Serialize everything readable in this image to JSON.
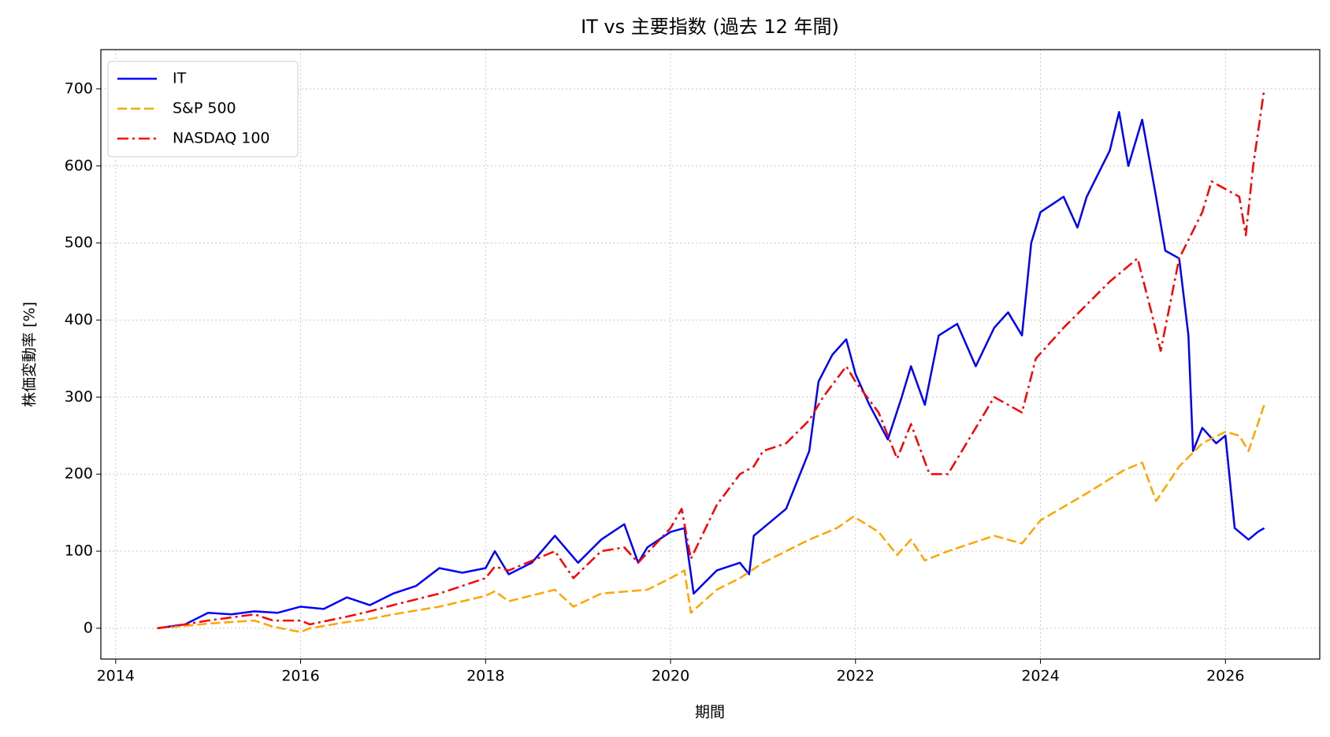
{
  "chart_data": {
    "type": "line",
    "title": "IT vs 主要指数 (過去 12 年間)",
    "xlabel": "期間",
    "ylabel": "株価変動率 [%]",
    "xlim": [
      2013.84,
      2027.02
    ],
    "xticks": [
      2014,
      2016,
      2018,
      2020,
      2022,
      2024,
      2026
    ],
    "ylim": [
      -40,
      751
    ],
    "yticks": [
      0,
      100,
      200,
      300,
      400,
      500,
      600,
      700
    ],
    "grid": true,
    "legend": "upper-left",
    "series": [
      {
        "name": "IT",
        "color": "#0000ff",
        "linestyle": "solid",
        "x": [
          2014.45,
          2014.75,
          2015.0,
          2015.25,
          2015.5,
          2015.75,
          2016.0,
          2016.25,
          2016.5,
          2016.75,
          2017.0,
          2017.25,
          2017.5,
          2017.75,
          2018.0,
          2018.1,
          2018.25,
          2018.5,
          2018.75,
          2019.0,
          2019.25,
          2019.5,
          2019.65,
          2019.75,
          2020.0,
          2020.15,
          2020.25,
          2020.5,
          2020.75,
          2020.85,
          2020.9,
          2021.0,
          2021.25,
          2021.4,
          2021.5,
          2021.6,
          2021.75,
          2021.9,
          2022.0,
          2022.15,
          2022.35,
          2022.5,
          2022.6,
          2022.75,
          2022.9,
          2023.1,
          2023.3,
          2023.5,
          2023.65,
          2023.8,
          2023.9,
          2024.0,
          2024.25,
          2024.4,
          2024.5,
          2024.75,
          2024.85,
          2024.95,
          2025.1,
          2025.25,
          2025.35,
          2025.5,
          2025.6,
          2025.65,
          2025.75,
          2025.9,
          2026.0,
          2026.1,
          2026.25,
          2026.35,
          2026.42
        ],
        "values": [
          0,
          5,
          20,
          18,
          22,
          20,
          28,
          25,
          40,
          30,
          45,
          55,
          78,
          72,
          78,
          100,
          70,
          85,
          120,
          85,
          115,
          135,
          85,
          105,
          125,
          130,
          45,
          75,
          85,
          70,
          120,
          130,
          155,
          200,
          230,
          320,
          355,
          375,
          330,
          290,
          245,
          300,
          340,
          290,
          380,
          395,
          340,
          390,
          410,
          380,
          500,
          540,
          560,
          520,
          560,
          620,
          670,
          600,
          660,
          560,
          490,
          480,
          380,
          230,
          260,
          240,
          250,
          130,
          115,
          125,
          130
        ]
      },
      {
        "name": "S&P 500",
        "color": "#ffa500",
        "linestyle": "dashed",
        "x": [
          2014.45,
          2014.75,
          2015.0,
          2015.5,
          2015.7,
          2016.0,
          2016.1,
          2016.5,
          2016.75,
          2017.0,
          2017.5,
          2018.0,
          2018.1,
          2018.25,
          2018.75,
          2018.95,
          2019.25,
          2019.75,
          2020.0,
          2020.15,
          2020.22,
          2020.5,
          2020.75,
          2021.0,
          2021.5,
          2021.8,
          2021.98,
          2022.25,
          2022.45,
          2022.6,
          2022.75,
          2023.0,
          2023.5,
          2023.8,
          2024.0,
          2024.5,
          2024.9,
          2025.1,
          2025.25,
          2025.5,
          2025.75,
          2026.0,
          2026.15,
          2026.25,
          2026.42
        ],
        "values": [
          0,
          3,
          6,
          10,
          2,
          -5,
          0,
          8,
          12,
          18,
          28,
          42,
          48,
          35,
          50,
          28,
          45,
          50,
          65,
          75,
          20,
          50,
          65,
          85,
          115,
          130,
          145,
          125,
          95,
          115,
          88,
          100,
          120,
          110,
          140,
          175,
          205,
          215,
          165,
          210,
          240,
          255,
          250,
          230,
          290
        ]
      },
      {
        "name": "NASDAQ 100",
        "color": "#ff0000",
        "linestyle": "dashdot",
        "x": [
          2014.45,
          2014.75,
          2015.0,
          2015.5,
          2015.7,
          2016.0,
          2016.1,
          2016.5,
          2016.75,
          2017.0,
          2017.5,
          2018.0,
          2018.1,
          2018.25,
          2018.75,
          2018.95,
          2019.25,
          2019.5,
          2019.65,
          2020.0,
          2020.12,
          2020.22,
          2020.5,
          2020.75,
          2020.9,
          2021.0,
          2021.25,
          2021.5,
          2021.65,
          2021.9,
          2022.0,
          2022.25,
          2022.45,
          2022.6,
          2022.8,
          2023.0,
          2023.25,
          2023.5,
          2023.8,
          2023.95,
          2024.25,
          2024.5,
          2024.75,
          2025.05,
          2025.2,
          2025.3,
          2025.5,
          2025.75,
          2025.85,
          2026.0,
          2026.15,
          2026.22,
          2026.3,
          2026.42
        ],
        "values": [
          0,
          5,
          10,
          18,
          10,
          10,
          5,
          15,
          22,
          30,
          45,
          65,
          80,
          75,
          100,
          65,
          100,
          105,
          85,
          130,
          155,
          90,
          160,
          200,
          210,
          230,
          240,
          270,
          300,
          340,
          320,
          280,
          220,
          265,
          200,
          200,
          250,
          300,
          280,
          350,
          390,
          420,
          450,
          480,
          410,
          360,
          480,
          540,
          580,
          570,
          560,
          510,
          600,
          700
        ]
      }
    ]
  }
}
